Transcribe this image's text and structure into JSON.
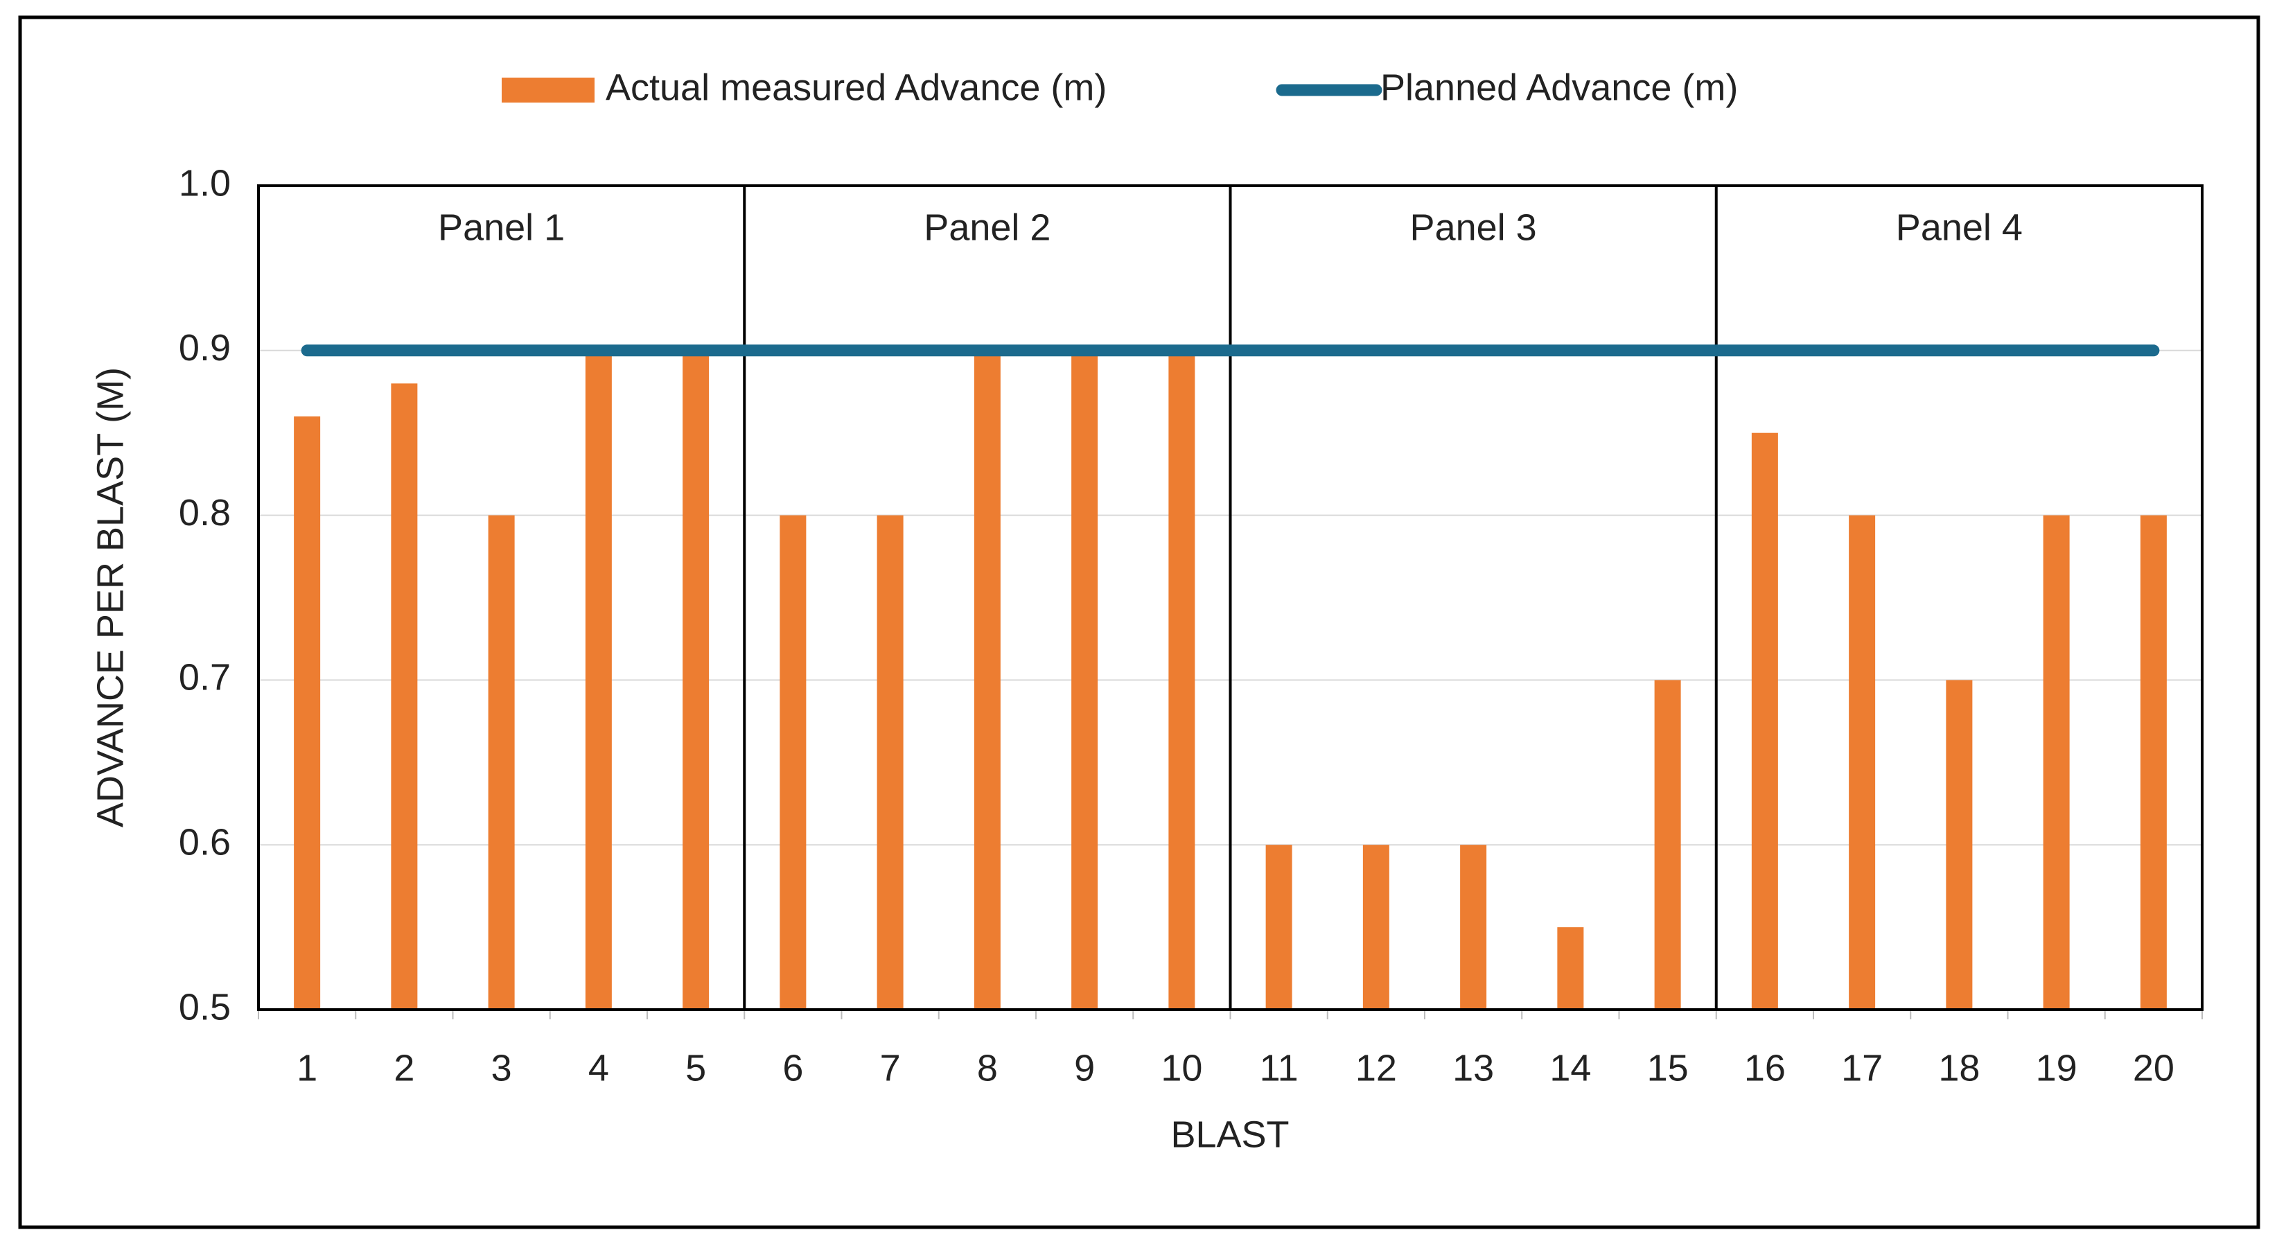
{
  "chart_data": {
    "type": "bar",
    "y_label": "ADVANCE PER BLAST (M)",
    "x_label": "BLAST",
    "categories": [
      "1",
      "2",
      "3",
      "4",
      "5",
      "6",
      "7",
      "8",
      "9",
      "10",
      "11",
      "12",
      "13",
      "14",
      "15",
      "16",
      "17",
      "18",
      "19",
      "20"
    ],
    "series": [
      {
        "name": "Actual measured Advance (m)",
        "type": "bar",
        "color": "#ed7d31",
        "values": [
          0.86,
          0.88,
          0.8,
          0.9,
          0.9,
          0.8,
          0.8,
          0.9,
          0.9,
          0.9,
          0.6,
          0.6,
          0.6,
          0.55,
          0.7,
          0.85,
          0.8,
          0.7,
          0.8,
          0.8
        ]
      },
      {
        "name": "Planned Advance (m)",
        "type": "line",
        "color": "#1b6a8d",
        "values": [
          0.9,
          0.9,
          0.9,
          0.9,
          0.9,
          0.9,
          0.9,
          0.9,
          0.9,
          0.9,
          0.9,
          0.9,
          0.9,
          0.9,
          0.9,
          0.9,
          0.9,
          0.9,
          0.9,
          0.9
        ]
      }
    ],
    "annotations": [
      "Panel 1",
      "Panel 2",
      "Panel 3",
      "Panel 4"
    ],
    "ylim": [
      0.5,
      1.0
    ],
    "yticks": [
      0.5,
      0.6,
      0.7,
      0.8,
      0.9,
      {
        "value": 1,
        "label": "1.0"
      }
    ],
    "grid": true,
    "legend": "top"
  }
}
